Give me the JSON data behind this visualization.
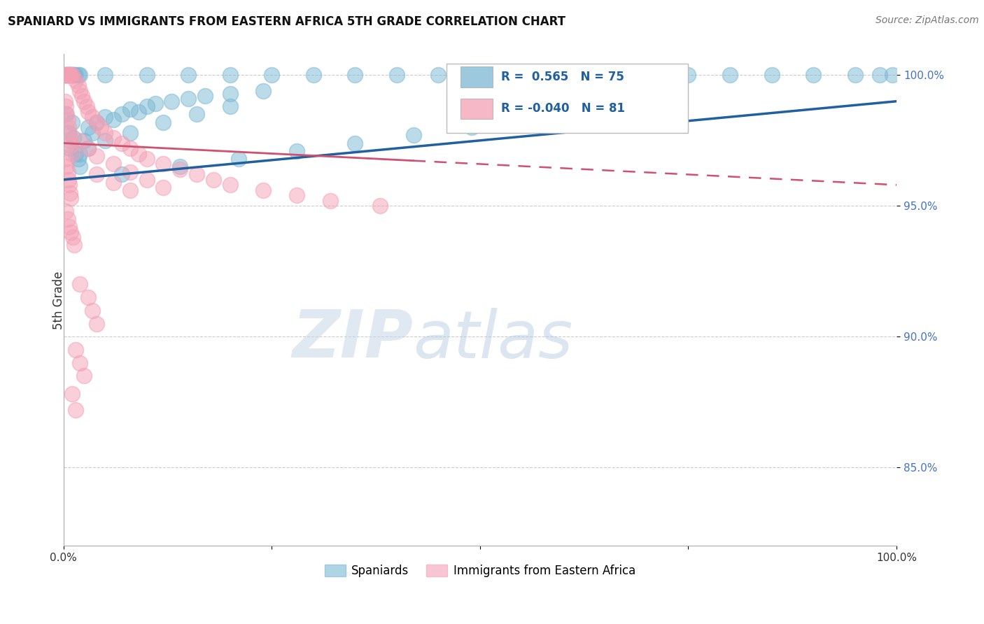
{
  "title": "SPANIARD VS IMMIGRANTS FROM EASTERN AFRICA 5TH GRADE CORRELATION CHART",
  "source": "Source: ZipAtlas.com",
  "ylabel": "5th Grade",
  "legend_labels": [
    "Spaniards",
    "Immigrants from Eastern Africa"
  ],
  "blue_color": "#7bb8d4",
  "pink_color": "#f4a0b5",
  "blue_line_color": "#2060a0",
  "pink_line_color": "#d05070",
  "R_blue": 0.565,
  "N_blue": 75,
  "R_pink": -0.04,
  "N_pink": 81,
  "xlim_pct": [
    0.0,
    1.0
  ],
  "ylim_pct": [
    0.82,
    1.008
  ],
  "ytick_vals": [
    0.85,
    0.9,
    0.95,
    1.0
  ],
  "ytick_labels": [
    "85.0%",
    "90.0%",
    "95.0%",
    "100.0%"
  ],
  "blue_line_x0": 0.0,
  "blue_line_y0": 0.96,
  "blue_line_x1": 1.0,
  "blue_line_y1": 0.99,
  "pink_line_x0": 0.0,
  "pink_line_y0": 0.974,
  "pink_line_x1": 1.0,
  "pink_line_y1": 0.958,
  "watermark_zip": "ZIP",
  "watermark_atlas": "atlas",
  "title_fontsize": 12,
  "source_fontsize": 10,
  "tick_fontsize": 11,
  "legend_fontsize": 12
}
